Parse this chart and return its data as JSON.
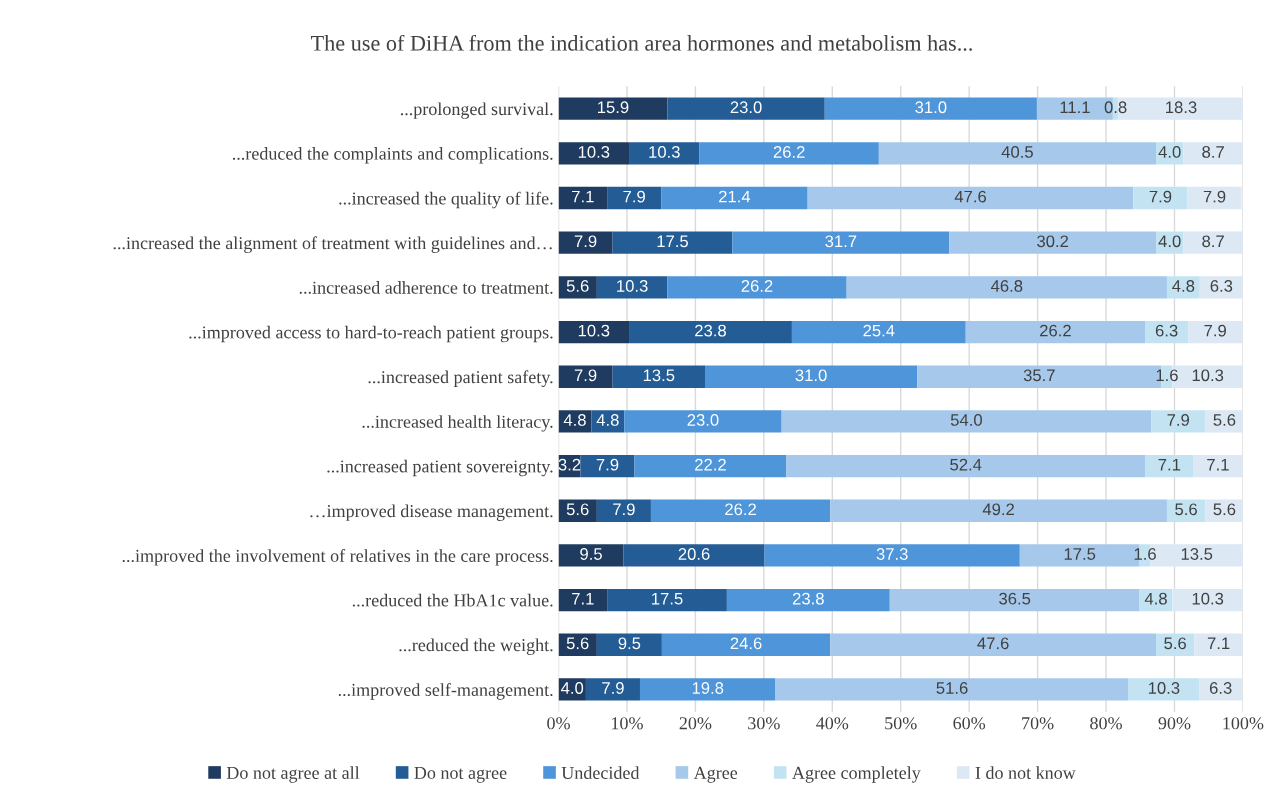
{
  "chart_data": {
    "type": "bar",
    "orientation": "horizontal",
    "stacked": true,
    "title": "The use of DiHA from the indication area hormones and metabolism has...",
    "categories": [
      "...prolonged survival.",
      "...reduced the complaints and complications.",
      "...increased the quality of life.",
      "...increased the alignment of treatment with guidelines and…",
      "...increased adherence to treatment.",
      "...improved access to hard-to-reach patient groups.",
      "...increased patient safety.",
      "...increased health literacy.",
      "...increased patient sovereignty.",
      "…improved disease management.",
      "...improved the involvement of relatives in the care process.",
      "...reduced the HbA1c value.",
      "...reduced the weight.",
      "...improved self-management."
    ],
    "series": [
      {
        "name": "Do not agree at all",
        "color": "#1f3b5f",
        "values": [
          15.9,
          10.3,
          7.1,
          7.9,
          5.6,
          10.3,
          7.9,
          4.8,
          3.2,
          5.6,
          9.5,
          7.1,
          5.6,
          4.0
        ],
        "value_labels": [
          "15.9",
          "10.3",
          "7.1",
          "7.9",
          "5.6",
          "10.3",
          "7.9",
          "4.8",
          "3.2",
          "5.6",
          "9.5",
          "7.1",
          "5.6",
          "4.0"
        ]
      },
      {
        "name": "Do not agree",
        "color": "#245d96",
        "values": [
          23.0,
          10.3,
          7.9,
          17.5,
          10.3,
          23.8,
          13.5,
          4.8,
          7.9,
          7.9,
          20.6,
          17.5,
          9.5,
          7.9
        ],
        "value_labels": [
          "23.0",
          "10.3",
          "7.9",
          "17.5",
          "10.3",
          "23.8",
          "13.5",
          "4.8",
          "7.9",
          "7.9",
          "20.6",
          "17.5",
          "9.5",
          "7.9"
        ]
      },
      {
        "name": "Undecided",
        "color": "#4f95d9",
        "values": [
          31.0,
          26.2,
          21.4,
          31.7,
          26.2,
          25.4,
          31.0,
          23.0,
          22.2,
          26.2,
          37.3,
          23.8,
          24.6,
          19.8
        ],
        "value_labels": [
          "31.0",
          "26.2",
          "21.4",
          "31.7",
          "26.2",
          "25.4",
          "31.0",
          "23.0",
          "22.2",
          "26.2",
          "37.3",
          "23.8",
          "24.6",
          "19.8"
        ]
      },
      {
        "name": "Agree",
        "color": "#a6c8ea",
        "values": [
          11.1,
          40.5,
          47.6,
          30.2,
          46.8,
          26.2,
          35.7,
          54.0,
          52.4,
          49.2,
          17.5,
          36.5,
          47.6,
          51.6
        ],
        "value_labels": [
          "11.1",
          "40.5",
          "47.6",
          "30.2",
          "46.8",
          "26.2",
          "35.7",
          "54.0",
          "52.4",
          "49.2",
          "17.5",
          "36.5",
          "47.6",
          "51.6"
        ]
      },
      {
        "name": "Agree completely",
        "color": "#c3e3f3",
        "values": [
          0.8,
          4.0,
          7.9,
          4.0,
          4.8,
          6.3,
          1.6,
          7.9,
          7.1,
          5.6,
          1.6,
          4.8,
          5.6,
          10.3
        ],
        "value_labels": [
          "0.8",
          "4.0",
          "7.9",
          "4.0",
          "4.8",
          "6.3",
          "1.6",
          "7.9",
          "7.1",
          "5.6",
          "1.6",
          "4.8",
          "5.6",
          "10.3"
        ]
      },
      {
        "name": "I do not know",
        "color": "#dde8f5",
        "values": [
          18.3,
          8.7,
          7.9,
          8.7,
          6.3,
          7.9,
          10.3,
          5.6,
          7.1,
          5.6,
          13.5,
          10.3,
          7.1,
          6.3
        ],
        "value_labels": [
          "18.3",
          "8.7",
          "7.9",
          "8.7",
          "6.3",
          "7.9",
          "10.3",
          "5.6",
          "7.1",
          "5.6",
          "13.5",
          "10.3",
          "7.1",
          "6.3"
        ]
      }
    ],
    "xlim": [
      0,
      100
    ],
    "xticks": [
      {
        "value": 0,
        "label": "0%"
      },
      {
        "value": 10,
        "label": "10%"
      },
      {
        "value": 20,
        "label": "20%"
      },
      {
        "value": 30,
        "label": "30%"
      },
      {
        "value": 40,
        "label": "40%"
      },
      {
        "value": 50,
        "label": "50%"
      },
      {
        "value": 60,
        "label": "60%"
      },
      {
        "value": 70,
        "label": "70%"
      },
      {
        "value": 80,
        "label": "80%"
      },
      {
        "value": 90,
        "label": "90%"
      },
      {
        "value": 100,
        "label": "100%"
      }
    ],
    "grid": "x",
    "legend": "bottom"
  }
}
